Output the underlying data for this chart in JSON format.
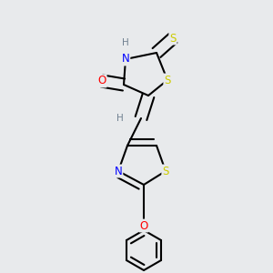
{
  "background_color": "#e8eaec",
  "atom_colors": {
    "C": "#000000",
    "H": "#708090",
    "N": "#0000ff",
    "O": "#ff0000",
    "S": "#cccc00"
  },
  "bond_color": "#000000",
  "bond_width": 1.5,
  "font_size_atom": 8.5,
  "font_size_H": 7.5
}
